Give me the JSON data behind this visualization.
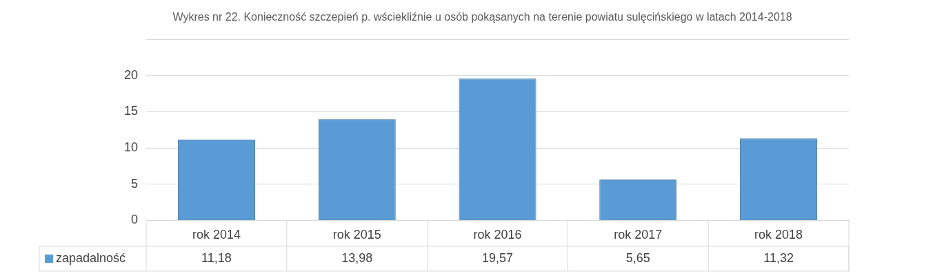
{
  "chart_data": {
    "type": "bar",
    "title": "Wykres nr 22. Konieczność szczepień p. wściekliźnie u osób pokąsanych na terenie powiatu sulęcińskiego w latach 2014-2018",
    "categories": [
      "rok 2014",
      "rok 2015",
      "rok 2016",
      "rok 2017",
      "rok 2018"
    ],
    "series": [
      {
        "name": "zapadalność",
        "color": "#5b9bd5",
        "values": [
          11.18,
          13.98,
          19.57,
          5.65,
          11.32
        ],
        "value_labels": [
          "11,18",
          "13,98",
          "19,57",
          "5,65",
          "11,32"
        ]
      }
    ],
    "ylim": [
      0,
      25
    ],
    "yticks": [
      0,
      5,
      10,
      15,
      20,
      {
        "value": 25,
        "label": null
      }
    ],
    "grid": true,
    "legend": "bottom"
  }
}
